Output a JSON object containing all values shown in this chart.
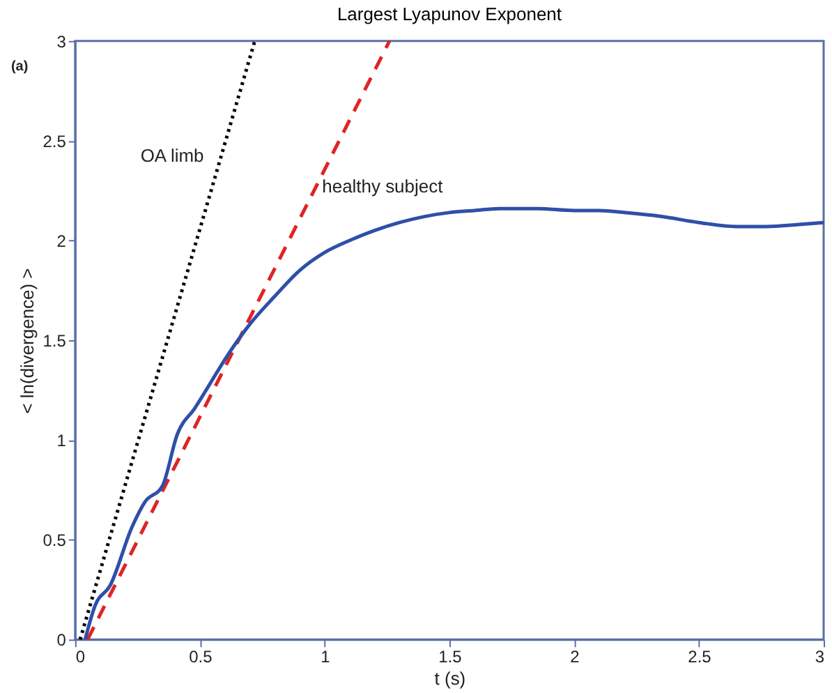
{
  "chart_data": {
    "type": "line",
    "title": "Largest Lyapunov Exponent",
    "xlabel": "t (s)",
    "ylabel": "< ln(divergence) >",
    "xlim": [
      0,
      3
    ],
    "ylim": [
      0,
      3
    ],
    "xticks": [
      0,
      0.5,
      1,
      1.5,
      2,
      2.5,
      3
    ],
    "yticks": [
      0,
      0.5,
      1,
      1.5,
      2,
      2.5,
      3
    ],
    "grid": false,
    "marker": "none",
    "series": [
      {
        "color": "#000000",
        "line_style": "dotted",
        "x": [
          0.02,
          0.72
        ],
        "values": [
          0,
          3
        ]
      },
      {
        "color": "#e02424",
        "line_style": "dashed",
        "x": [
          0.05,
          1.26
        ],
        "values": [
          0,
          3
        ]
      },
      {
        "color": "#2f4fa8",
        "line_style": "solid",
        "x": [
          0.04,
          0.08,
          0.14,
          0.23,
          0.28,
          0.35,
          0.41,
          0.48,
          0.63,
          0.7,
          0.8,
          0.9,
          1.0,
          1.1,
          1.2,
          1.3,
          1.4,
          1.5,
          1.6,
          1.7,
          1.85,
          2.0,
          2.1,
          2.2,
          2.35,
          2.5,
          2.65,
          2.77,
          2.9,
          3.0
        ],
        "values": [
          0,
          0.17,
          0.27,
          0.57,
          0.69,
          0.77,
          1.03,
          1.16,
          1.46,
          1.58,
          1.72,
          1.85,
          1.94,
          2.0,
          2.05,
          2.09,
          2.12,
          2.14,
          2.15,
          2.16,
          2.16,
          2.15,
          2.15,
          2.14,
          2.12,
          2.09,
          2.07,
          2.07,
          2.08,
          2.09
        ]
      }
    ],
    "annotations": [
      "(a)",
      "OA limb",
      {
        "text": "healthy subject",
        "x": 0.99,
        "y": 2.27
      }
    ]
  }
}
